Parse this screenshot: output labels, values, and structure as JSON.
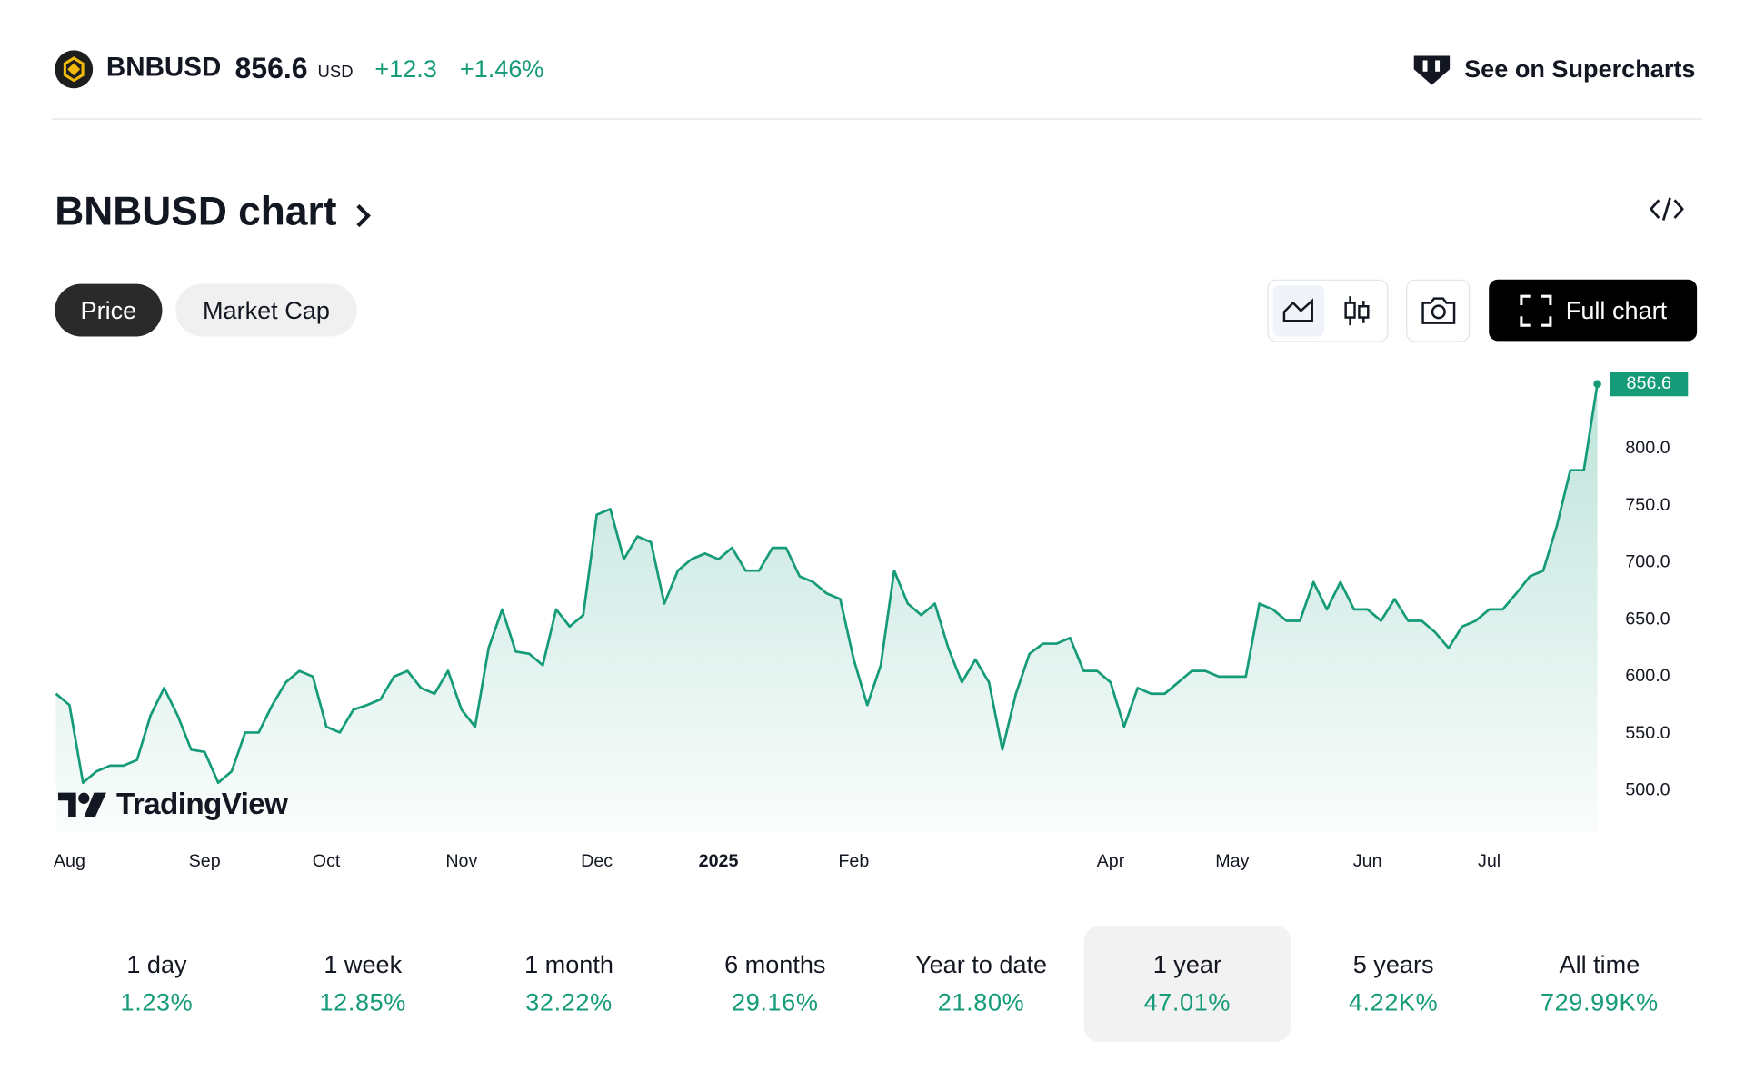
{
  "header": {
    "symbol": "BNBUSD",
    "price": "856.6",
    "currency": "USD",
    "change": "+12.3",
    "change_percent": "+1.46%",
    "link": "See on Supercharts"
  },
  "section": {
    "title": "BNBUSD chart",
    "tabs": [
      {
        "label": "Price",
        "selected": true
      },
      {
        "label": "Market Cap",
        "selected": false
      }
    ],
    "full_chart": "Full chart"
  },
  "watermark": "TradingView",
  "chart_data": {
    "type": "line",
    "color": "#159b78",
    "categories": [
      null,
      "Aug",
      null,
      null,
      null,
      null,
      null,
      null,
      null,
      null,
      null,
      "Sep",
      null,
      null,
      null,
      null,
      null,
      null,
      null,
      null,
      "Oct",
      null,
      null,
      null,
      null,
      null,
      null,
      null,
      null,
      null,
      "Nov",
      null,
      null,
      null,
      null,
      null,
      null,
      null,
      null,
      null,
      "Dec",
      null,
      null,
      null,
      null,
      null,
      null,
      null,
      null,
      "2025",
      null,
      null,
      null,
      null,
      null,
      null,
      null,
      null,
      null,
      "Feb",
      null,
      null,
      null,
      null,
      null,
      null,
      null,
      null,
      null,
      null,
      null,
      null,
      null,
      null,
      null,
      null,
      null,
      null,
      "Apr",
      null,
      null,
      null,
      null,
      null,
      null,
      null,
      null,
      "May",
      null,
      null,
      null,
      null,
      null,
      null,
      null,
      null,
      null,
      "Jun",
      null,
      null,
      null,
      null,
      null,
      null,
      null,
      null,
      "Jul",
      null,
      null,
      null,
      null,
      null,
      null,
      null,
      null
    ],
    "values": [
      585,
      575,
      507,
      517,
      522,
      522,
      527,
      566,
      590,
      566,
      536,
      534,
      507,
      517,
      551,
      551,
      575,
      595,
      605,
      600,
      556,
      551,
      571,
      575,
      580,
      600,
      605,
      590,
      585,
      605,
      571,
      556,
      625,
      659,
      622,
      620,
      610,
      659,
      644,
      654,
      742,
      747,
      703,
      723,
      718,
      664,
      693,
      703,
      708,
      703,
      713,
      693,
      693,
      713,
      713,
      688,
      683,
      673,
      668,
      615,
      575,
      610,
      693,
      664,
      654,
      664,
      625,
      595,
      615,
      595,
      536,
      585,
      620,
      629,
      629,
      634,
      605,
      605,
      595,
      556,
      590,
      585,
      585,
      595,
      605,
      605,
      600,
      600,
      600,
      664,
      659,
      649,
      649,
      683,
      659,
      683,
      659,
      659,
      649,
      668,
      649,
      649,
      639,
      625,
      644,
      649,
      659,
      659,
      673,
      688,
      693,
      732,
      781,
      781,
      856.6
    ],
    "ylim": [
      463,
      860
    ],
    "yticks": [
      {
        "value": 500,
        "label": "500.0"
      },
      {
        "value": 550,
        "label": "550.0"
      },
      {
        "value": 600,
        "label": "600.0"
      },
      {
        "value": 650,
        "label": "650.0"
      },
      {
        "value": 700,
        "label": "700.0"
      },
      {
        "value": 750,
        "label": "750.0"
      },
      {
        "value": 800,
        "label": "800.0"
      }
    ],
    "grid": false
  },
  "periods": [
    {
      "label": "1 day",
      "change": "1.23%",
      "selected": false
    },
    {
      "label": "1 week",
      "change": "12.85%",
      "selected": false
    },
    {
      "label": "1 month",
      "change": "32.22%",
      "selected": false
    },
    {
      "label": "6 months",
      "change": "29.16%",
      "selected": false
    },
    {
      "label": "Year to date",
      "change": "21.80%",
      "selected": false
    },
    {
      "label": "1 year",
      "change": "47.01%",
      "selected": true
    },
    {
      "label": "5 years",
      "change": "4.22K%",
      "selected": false
    },
    {
      "label": "All time",
      "change": "729.99K%",
      "selected": false
    }
  ]
}
